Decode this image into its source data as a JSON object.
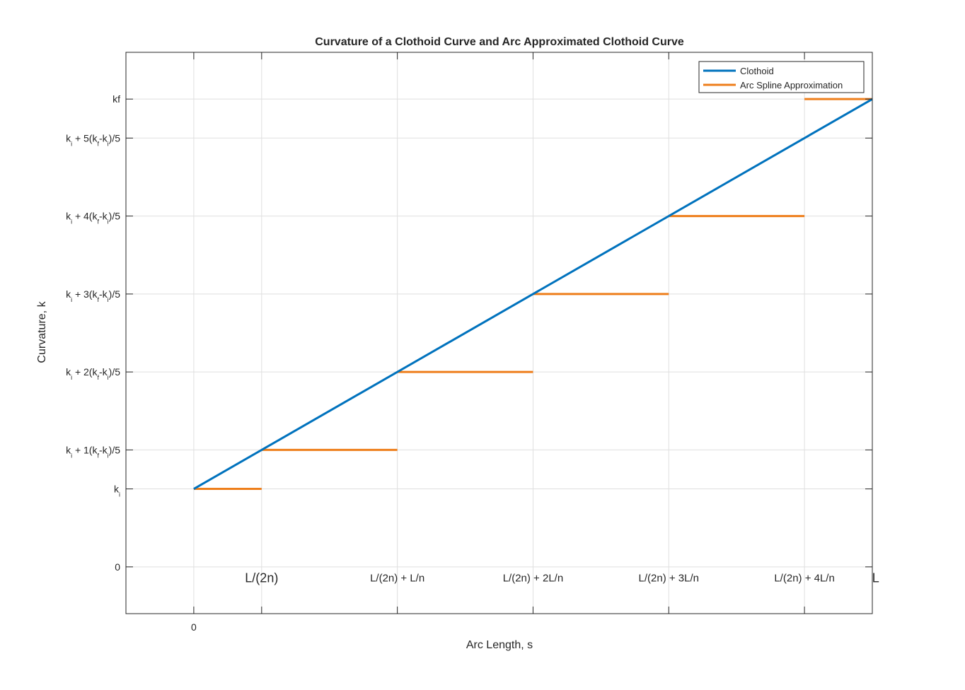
{
  "chart_data": {
    "type": "line",
    "title": "Curvature of a Clothoid Curve and Arc Approximated Clothoid Curve",
    "xlabel": "Arc Length, s",
    "ylabel": "Curvature, k",
    "xlim": [
      -1,
      10
    ],
    "ylim": [
      -1.2,
      13.2
    ],
    "grid": true,
    "legend_position": "top-right",
    "x_ticks": [
      {
        "value": 0,
        "label": "0"
      },
      {
        "value": 1,
        "label": ""
      },
      {
        "value": 3,
        "label": ""
      },
      {
        "value": 5,
        "label": ""
      },
      {
        "value": 7,
        "label": ""
      },
      {
        "value": 9,
        "label": ""
      },
      {
        "value": 10,
        "label": ""
      }
    ],
    "y_ticks": [
      {
        "value": 0,
        "label": "0"
      },
      {
        "value": 2,
        "label": "k",
        "sub": "i",
        "rest": ""
      },
      {
        "value": 3,
        "label": "k",
        "sub": "i",
        "rest": " + 1(k",
        "sub2": "f",
        "rest2": "-k",
        "sub3": "i",
        "rest3": ")/5"
      },
      {
        "value": 5,
        "label": "k",
        "sub": "i",
        "rest": " + 2(k",
        "sub2": "f",
        "rest2": "-k",
        "sub3": "i",
        "rest3": ")/5"
      },
      {
        "value": 7,
        "label": "k",
        "sub": "i",
        "rest": " + 3(k",
        "sub2": "f",
        "rest2": "-k",
        "sub3": "i",
        "rest3": ")/5"
      },
      {
        "value": 9,
        "label": "k",
        "sub": "i",
        "rest": " + 4(k",
        "sub2": "f",
        "rest2": "-k",
        "sub3": "i",
        "rest3": ")/5"
      },
      {
        "value": 11,
        "label": "k",
        "sub": "i",
        "rest": " + 5(k",
        "sub2": "f",
        "rest2": "-k",
        "sub3": "i",
        "rest3": ")/5"
      },
      {
        "value": 12,
        "label": "kf"
      }
    ],
    "annotations": [
      {
        "x": 1,
        "y": -0.28,
        "text": "L/(2n)",
        "size": "large"
      },
      {
        "x": 3,
        "y": -0.28,
        "text": "L/(2n) + L/n",
        "size": "small"
      },
      {
        "x": 5,
        "y": -0.28,
        "text": "L/(2n) + 2L/n",
        "size": "small"
      },
      {
        "x": 7,
        "y": -0.28,
        "text": "L/(2n) + 3L/n",
        "size": "small"
      },
      {
        "x": 9,
        "y": -0.28,
        "text": "L/(2n) + 4L/n",
        "size": "small"
      },
      {
        "x": 10.05,
        "y": -0.28,
        "text": "L",
        "size": "large"
      }
    ],
    "series": [
      {
        "name": "Clothoid",
        "color": "#0072BD",
        "style": "line",
        "points": [
          [
            0,
            2
          ],
          [
            10,
            12
          ]
        ]
      },
      {
        "name": "Arc Spline Approximation",
        "color": "#D95319",
        "style": "segments",
        "segments": [
          [
            [
              0,
              2
            ],
            [
              1,
              2
            ]
          ],
          [
            [
              1,
              3
            ],
            [
              3,
              3
            ]
          ],
          [
            [
              3,
              5
            ],
            [
              5,
              5
            ]
          ],
          [
            [
              5,
              7
            ],
            [
              7,
              7
            ]
          ],
          [
            [
              7,
              9
            ],
            [
              9,
              9
            ]
          ],
          [
            [
              9,
              12
            ],
            [
              10,
              12
            ]
          ]
        ]
      }
    ]
  }
}
